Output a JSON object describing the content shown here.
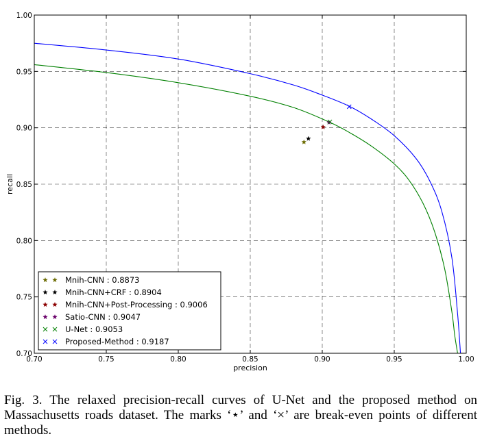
{
  "chart_data": {
    "type": "line",
    "title": "",
    "xlabel": "precision",
    "ylabel": "recall",
    "xlim": [
      0.7,
      1.0
    ],
    "ylim": [
      0.7,
      1.0
    ],
    "xticks": [
      "0.70",
      "0.75",
      "0.80",
      "0.85",
      "0.90",
      "0.95",
      "1.00"
    ],
    "yticks": [
      "0.70",
      "0.75",
      "0.80",
      "0.85",
      "0.90",
      "0.95",
      "1.00"
    ],
    "grid": true,
    "legend_placement": "bottom-left",
    "series": [
      {
        "name": "U-Net",
        "kind": "curve",
        "color": "#008000",
        "x": [
          0.7,
          0.75,
          0.8,
          0.85,
          0.88,
          0.905,
          0.92,
          0.935,
          0.95,
          0.96,
          0.97,
          0.978,
          0.985,
          0.99,
          0.992,
          0.994
        ],
        "y": [
          0.956,
          0.949,
          0.94,
          0.928,
          0.918,
          0.905,
          0.895,
          0.883,
          0.868,
          0.854,
          0.833,
          0.808,
          0.775,
          0.737,
          0.716,
          0.7
        ]
      },
      {
        "name": "Proposed-Method",
        "kind": "curve",
        "color": "#0000ff",
        "x": [
          0.7,
          0.75,
          0.8,
          0.85,
          0.88,
          0.9,
          0.919,
          0.935,
          0.95,
          0.965,
          0.975,
          0.983,
          0.99,
          0.994,
          0.996
        ],
        "y": [
          0.975,
          0.969,
          0.961,
          0.948,
          0.938,
          0.929,
          0.919,
          0.907,
          0.893,
          0.873,
          0.852,
          0.826,
          0.785,
          0.735,
          0.7
        ]
      }
    ],
    "points": [
      {
        "name": "Mnih-CNN",
        "value": 0.8873,
        "marker": "star",
        "color": "#6b6b00"
      },
      {
        "name": "Mnih-CNN+CRF",
        "value": 0.8904,
        "marker": "star",
        "color": "#000000"
      },
      {
        "name": "Mnih-CNN+Post-Processing",
        "value": 0.9006,
        "marker": "star",
        "color": "#8b0000"
      },
      {
        "name": "Satio-CNN",
        "value": 0.9047,
        "marker": "star",
        "color": "#6a006a"
      },
      {
        "name": "U-Net",
        "value": 0.9053,
        "marker": "x",
        "color": "#008000"
      },
      {
        "name": "Proposed-Method",
        "value": 0.9187,
        "marker": "x",
        "color": "#0000ff"
      }
    ],
    "legend": [
      "Mnih-CNN : 0.8873",
      "Mnih-CNN+CRF : 0.8904",
      "Mnih-CNN+Post-Processing : 0.9006",
      "Satio-CNN : 0.9047",
      "U-Net : 0.9053",
      "Proposed-Method : 0.9187"
    ]
  },
  "caption": "Fig. 3.  The relaxed precision-recall curves of U-Net and the proposed method on Massachusetts roads dataset. The marks ‘⋆’ and ‘×’ are break-even points of different methods."
}
